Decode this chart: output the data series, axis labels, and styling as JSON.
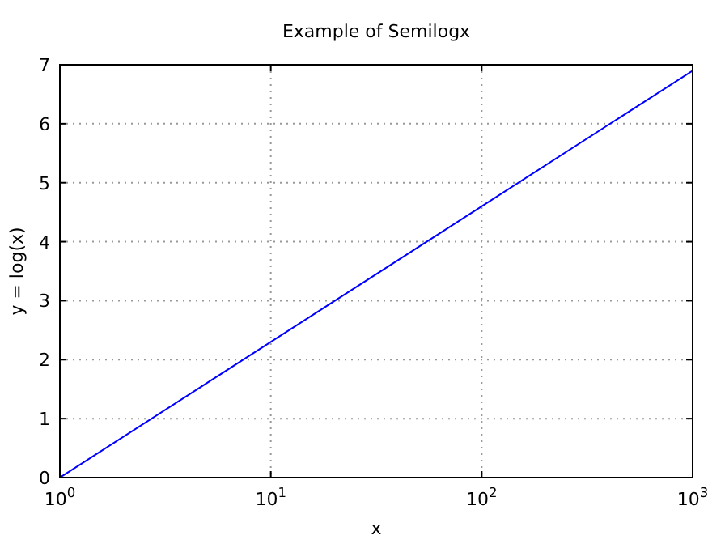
{
  "chart_data": {
    "type": "line",
    "title": "Example of Semilogx",
    "xlabel": "x",
    "ylabel": "y = log(x)",
    "x": [
      1,
      10,
      100,
      1000
    ],
    "series": [
      {
        "color": "#0000ff",
        "values": [
          0,
          2.3,
          4.6,
          6.9
        ]
      }
    ],
    "log": "x",
    "xlim": [
      1,
      1000
    ],
    "ylim": [
      0,
      7
    ],
    "xticks": [
      {
        "value": 1,
        "label": "10$^{0}$"
      },
      {
        "value": 10,
        "label": "10$^{1}$"
      },
      {
        "value": 100,
        "label": "10$^{2}$"
      },
      {
        "value": 1000,
        "label": "10$^{3}$"
      }
    ],
    "yticks": [
      0,
      1,
      2,
      3,
      4,
      5,
      6,
      7
    ],
    "grid": true,
    "line_style": "solid",
    "marker": "none"
  }
}
